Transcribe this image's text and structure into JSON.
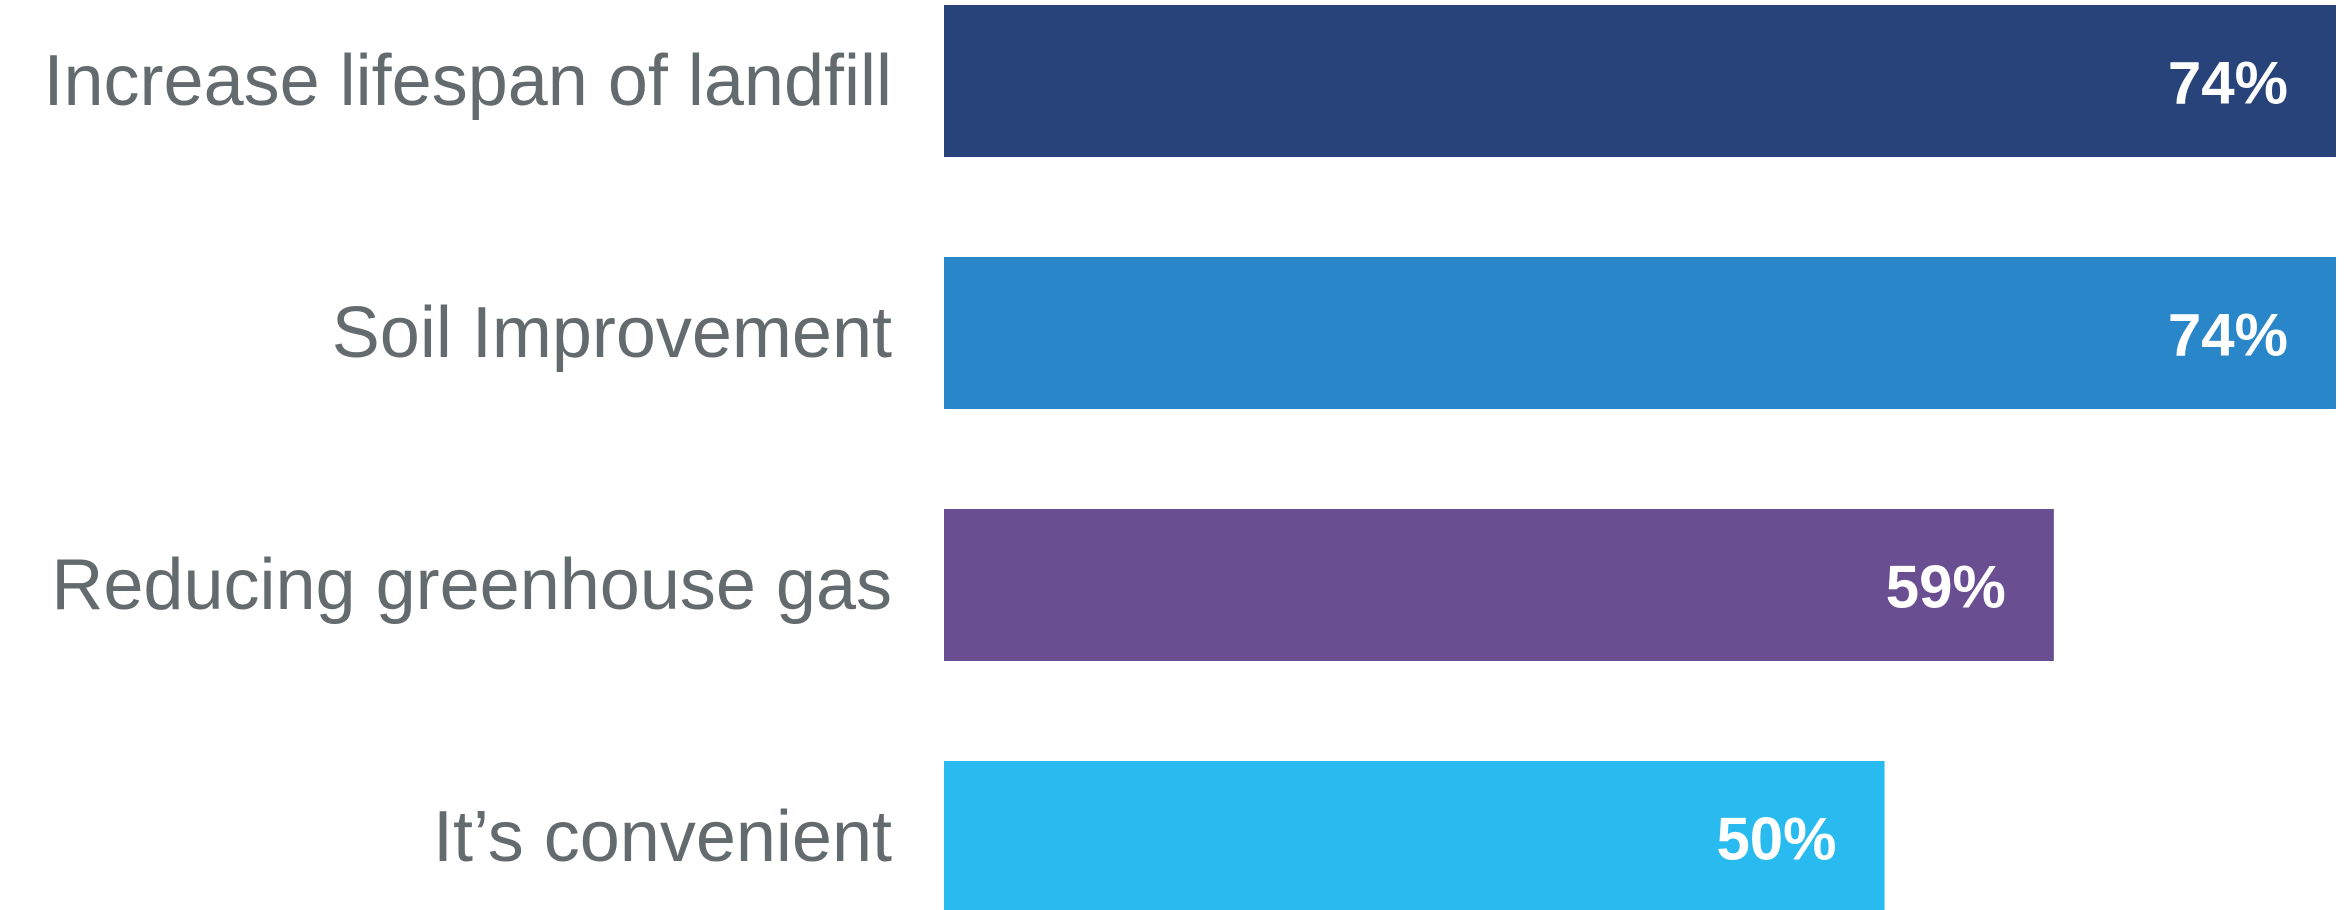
{
  "chart_data": {
    "type": "bar",
    "orientation": "horizontal",
    "categories": [
      "Increase lifespan of landfill",
      "Soil Improvement",
      "Reducing greenhouse gas",
      "It’s convenient"
    ],
    "values": [
      74,
      74,
      59,
      50
    ],
    "value_labels": [
      "74%",
      "74%",
      "59%",
      "50%"
    ],
    "colors": [
      "#27437a",
      "#2886c9",
      "#694f92",
      "#29bbef"
    ],
    "unit": "%",
    "xlim": [
      0,
      74
    ],
    "grid": false,
    "legend": "none"
  },
  "colors": {
    "background": "#ffffff",
    "category_text": "#646b6e",
    "value_text": "#ffffff"
  }
}
